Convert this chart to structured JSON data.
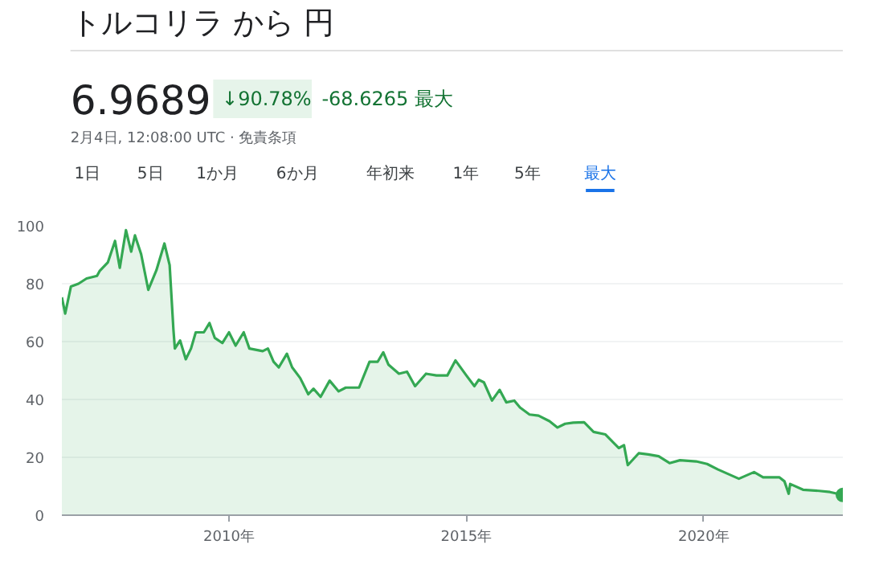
{
  "chart_data": {
    "type": "area",
    "title": "トルコリラ から 円",
    "annotations": [
      "6.9689",
      "↓90.78%",
      "-68.6265 最大",
      "2月4日, 12:08:00 UTC · 免責条項",
      "1日",
      "5日",
      "1か月",
      "6か月",
      "年初来",
      "1年",
      "5年",
      "最大"
    ],
    "series": [
      {
        "color": "#34a853",
        "x": [
          2006.48,
          2006.55,
          2006.67,
          2006.83,
          2007.0,
          2007.22,
          2007.28,
          2007.45,
          2007.6,
          2007.7,
          2007.83,
          2007.94,
          2008.02,
          2008.15,
          2008.3,
          2008.47,
          2008.64,
          2008.75,
          2008.83,
          2008.86,
          2008.97,
          2009.09,
          2009.2,
          2009.3,
          2009.47,
          2009.59,
          2009.7,
          2009.86,
          2010.0,
          2010.14,
          2010.31,
          2010.43,
          2010.71,
          2010.82,
          2010.94,
          2011.05,
          2011.22,
          2011.33,
          2011.5,
          2011.67,
          2011.78,
          2011.93,
          2012.12,
          2012.31,
          2012.46,
          2012.74,
          2012.96,
          2013.13,
          2013.25,
          2013.36,
          2013.58,
          2013.75,
          2013.92,
          2014.15,
          2014.37,
          2014.6,
          2014.77,
          2015.0,
          2015.17,
          2015.26,
          2015.37,
          2015.54,
          2015.7,
          2015.84,
          2016.01,
          2016.13,
          2016.33,
          2016.52,
          2016.75,
          2016.92,
          2017.08,
          2017.25,
          2017.48,
          2017.68,
          2017.93,
          2018.21,
          2018.32,
          2018.4,
          2018.63,
          2018.83,
          2019.05,
          2019.28,
          2019.5,
          2019.84,
          2020.07,
          2020.3,
          2020.74,
          2021.06,
          2021.25,
          2021.59,
          2021.7,
          2021.79,
          2021.82,
          2022.09,
          2022.43,
          2022.66,
          2022.93
        ],
        "values": [
          75.3,
          69.7,
          79,
          80,
          81.8,
          82.7,
          84.5,
          87.4,
          94.8,
          85.5,
          98.5,
          91.1,
          96.7,
          90.2,
          77.9,
          84.6,
          93.9,
          86.4,
          64.1,
          57.6,
          60.4,
          53.9,
          57.6,
          63.2,
          63.2,
          66.4,
          61.3,
          59.5,
          63.2,
          58.6,
          63.2,
          57.6,
          56.7,
          57.6,
          53,
          51.1,
          55.8,
          51.1,
          47.4,
          41.8,
          43.7,
          40.9,
          46.5,
          42.8,
          44.1,
          44.1,
          53,
          53,
          56.3,
          52,
          48.9,
          49.6,
          44.6,
          48.9,
          48.3,
          48.3,
          53.5,
          48.3,
          44.6,
          46.8,
          45.9,
          39.6,
          43.3,
          39,
          39.6,
          37.2,
          34.8,
          34.4,
          32.5,
          30.3,
          31.6,
          32,
          32.1,
          28.8,
          27.9,
          23.2,
          24.2,
          17.3,
          21.4,
          21,
          20.4,
          18,
          19,
          18.6,
          17.7,
          15.8,
          12.6,
          14.9,
          13.1,
          13.1,
          11.7,
          7.4,
          10.8,
          8.8,
          8.4,
          8,
          7.0
        ]
      }
    ],
    "xlim": [
      2006.48,
      2022.93
    ],
    "xticks": [
      {
        "value": 2010,
        "label": "2010年"
      },
      {
        "value": 2015,
        "label": "2015年"
      },
      {
        "value": 2020,
        "label": "2020年"
      }
    ],
    "ylim": [
      0,
      100
    ],
    "yticks": [
      0,
      20,
      40,
      60,
      80,
      100
    ],
    "grid": "y"
  }
}
